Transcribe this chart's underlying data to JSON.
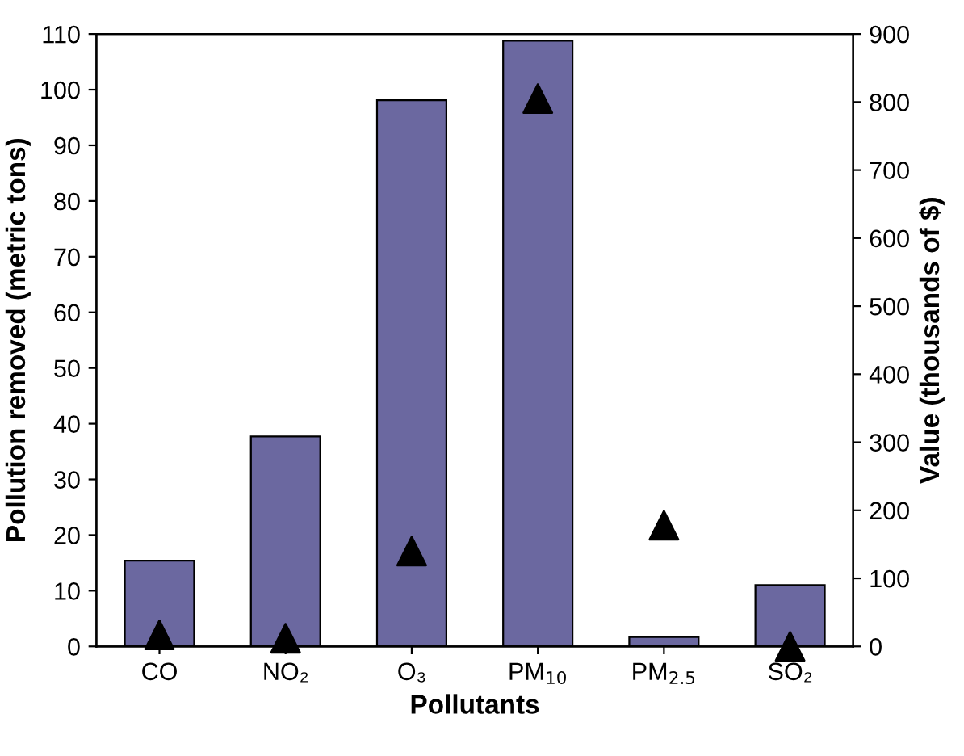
{
  "chart_data": {
    "type": "bar",
    "xlabel": "Pollutants",
    "ylabel": "Pollution removed (metric tons)",
    "y2label": "Value (thousands of $)",
    "categories": [
      "CO",
      "NO₂",
      "O₃",
      "PM$_{10}$",
      "PM$_{2.5}$",
      "SO₂"
    ],
    "series": [
      {
        "color": "#6b68a0",
        "values": [
          15.4,
          37.7,
          98.1,
          108.8,
          1.7,
          11.0
        ]
      },
      {
        "type": "scatter",
        "axis": "y2",
        "color": "#000000",
        "marker": "triangle",
        "values": [
          17,
          12,
          140,
          805,
          178,
          0
        ]
      }
    ],
    "ylim": [
      0,
      110
    ],
    "yticks": [
      0,
      10,
      20,
      30,
      40,
      50,
      60,
      70,
      80,
      90,
      100,
      110
    ],
    "y2lim": [
      0,
      900
    ],
    "y2ticks": [
      0,
      100,
      200,
      300,
      400,
      500,
      600,
      700,
      800,
      900
    ],
    "grid": false,
    "legend": false
  }
}
